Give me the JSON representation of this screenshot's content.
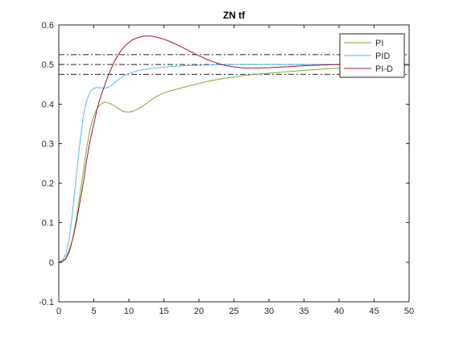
{
  "chart_data": {
    "type": "line",
    "title": "ZN tf",
    "xlabel": "",
    "ylabel": "",
    "xlim": [
      0,
      50
    ],
    "ylim": [
      -0.1,
      0.6
    ],
    "xticks": [
      0,
      5,
      10,
      15,
      20,
      25,
      30,
      35,
      40,
      45,
      50
    ],
    "yticks": [
      -0.1,
      0,
      0.1,
      0.2,
      0.3,
      0.4,
      0.5,
      0.6
    ],
    "ytick_labels": [
      "-0.1",
      "0",
      "0.1",
      "0.2",
      "0.3",
      "0.4",
      "0.5",
      "0.6"
    ],
    "grid": false,
    "legend_position": "top-right",
    "reference_lines": [
      0.6,
      0.525,
      0.5,
      0.475
    ],
    "series": [
      {
        "name": "PI",
        "color": "#77ac30",
        "x": [
          0,
          0.5,
          1,
          1.5,
          2,
          2.5,
          3,
          3.5,
          4,
          4.5,
          5,
          5.5,
          6,
          6.5,
          7,
          7.5,
          8,
          8.5,
          9,
          9.5,
          10,
          10.5,
          11,
          12,
          13,
          14,
          15,
          16,
          18,
          20,
          22,
          24,
          26,
          28,
          30,
          32,
          35,
          38,
          40,
          43,
          46,
          50
        ],
        "y": [
          0,
          0.002,
          0.008,
          0.025,
          0.06,
          0.11,
          0.17,
          0.23,
          0.29,
          0.34,
          0.37,
          0.39,
          0.4,
          0.405,
          0.403,
          0.4,
          0.395,
          0.389,
          0.383,
          0.38,
          0.38,
          0.381,
          0.385,
          0.395,
          0.408,
          0.42,
          0.428,
          0.434,
          0.443,
          0.452,
          0.46,
          0.466,
          0.471,
          0.475,
          0.478,
          0.481,
          0.485,
          0.489,
          0.491,
          0.494,
          0.496,
          0.498
        ]
      },
      {
        "name": "PID",
        "color": "#4dbeee",
        "x": [
          0,
          0.5,
          1,
          1.5,
          2,
          2.5,
          3,
          3.5,
          4,
          4.5,
          5,
          5.5,
          6,
          6.5,
          7,
          7.5,
          8,
          9,
          10,
          11,
          12,
          14,
          16,
          18,
          20,
          22,
          25,
          30,
          35,
          40,
          45,
          50
        ],
        "y": [
          0,
          0.005,
          0.02,
          0.06,
          0.13,
          0.22,
          0.3,
          0.37,
          0.41,
          0.432,
          0.44,
          0.442,
          0.441,
          0.44,
          0.442,
          0.447,
          0.455,
          0.468,
          0.477,
          0.483,
          0.487,
          0.492,
          0.495,
          0.497,
          0.498,
          0.499,
          0.5,
          0.5,
          0.5,
          0.5,
          0.5,
          0.5
        ]
      },
      {
        "name": "PI-D",
        "color": "#a2142f",
        "x": [
          0,
          0.5,
          1,
          1.5,
          2,
          2.5,
          3,
          3.5,
          4,
          4.5,
          5,
          5.5,
          6,
          6.5,
          7,
          7.5,
          8,
          8.5,
          9,
          9.5,
          10,
          10.5,
          11,
          11.5,
          12,
          12.5,
          13,
          13.5,
          14,
          15,
          16,
          17,
          18,
          19,
          20,
          21,
          22,
          23,
          24,
          25,
          26,
          27,
          28,
          30,
          32,
          35,
          38,
          40,
          43,
          46,
          50
        ],
        "y": [
          0,
          0.002,
          0.01,
          0.03,
          0.06,
          0.1,
          0.15,
          0.2,
          0.26,
          0.31,
          0.35,
          0.39,
          0.42,
          0.445,
          0.47,
          0.49,
          0.51,
          0.525,
          0.538,
          0.548,
          0.556,
          0.562,
          0.566,
          0.569,
          0.571,
          0.572,
          0.572,
          0.571,
          0.569,
          0.564,
          0.557,
          0.549,
          0.54,
          0.531,
          0.522,
          0.514,
          0.507,
          0.501,
          0.497,
          0.494,
          0.492,
          0.491,
          0.491,
          0.492,
          0.494,
          0.497,
          0.499,
          0.5,
          0.5,
          0.5,
          0.5
        ]
      }
    ]
  }
}
